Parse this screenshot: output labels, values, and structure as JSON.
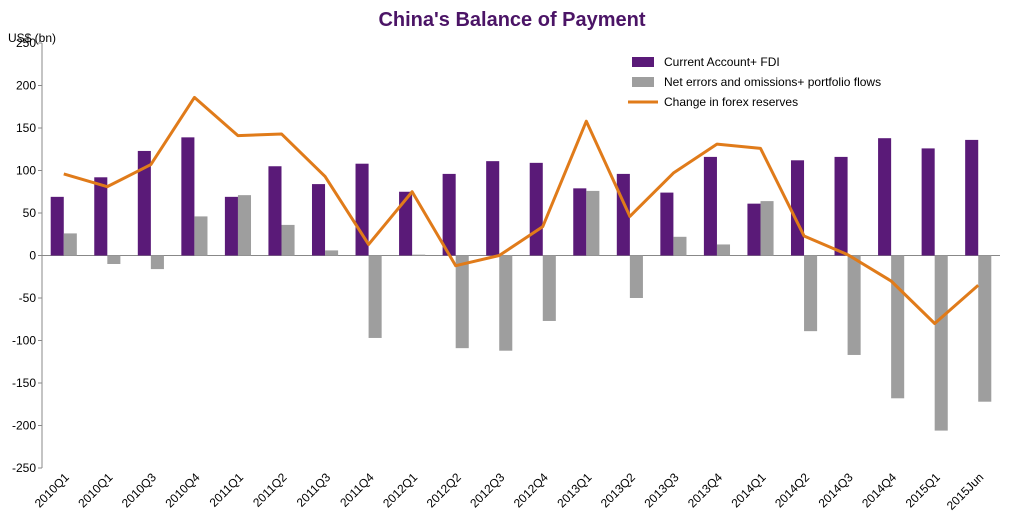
{
  "chart_data": {
    "type": "bar_line",
    "title": "China's Balance of Payment",
    "y_label": "US$ (bn)",
    "categories": [
      "2010Q1",
      "2010Q1",
      "2010Q3",
      "2010Q4",
      "2011Q1",
      "2011Q2",
      "2011Q3",
      "2011Q4",
      "2012Q1",
      "2012Q2",
      "2012Q3",
      "2012Q4",
      "2013Q1",
      "2013Q2",
      "2013Q3",
      "2013Q4",
      "2014Q1",
      "2014Q2",
      "2014Q3",
      "2014Q4",
      "2015Q1",
      "2015Jun"
    ],
    "series": [
      {
        "name": "Current Account+ FDI",
        "type": "bar",
        "color": "#5a1a78",
        "values": [
          69,
          92,
          123,
          139,
          69,
          105,
          84,
          108,
          75,
          96,
          111,
          109,
          79,
          96,
          74,
          116,
          61,
          112,
          116,
          138,
          126,
          136
        ]
      },
      {
        "name": "Net errors and omissions+ portfolio flows",
        "type": "bar",
        "color": "#9e9e9e",
        "values": [
          26,
          -10,
          -16,
          46,
          71,
          36,
          6,
          -97,
          1,
          -109,
          -112,
          -77,
          76,
          -50,
          22,
          13,
          64,
          -89,
          -117,
          -168,
          -206,
          -172
        ]
      },
      {
        "name": "Change in forex reserves",
        "type": "line",
        "color": "#e07b1a",
        "values": [
          96,
          81,
          107,
          186,
          141,
          143,
          93,
          13,
          75,
          -12,
          0,
          34,
          158,
          46,
          97,
          131,
          126,
          23,
          1,
          -30,
          -80,
          -35
        ]
      }
    ],
    "ylim": [
      -250,
      250
    ],
    "yticks": [
      -250,
      -200,
      -150,
      -100,
      -50,
      0,
      50,
      100,
      150,
      200,
      250
    ],
    "legend": "top-right"
  }
}
